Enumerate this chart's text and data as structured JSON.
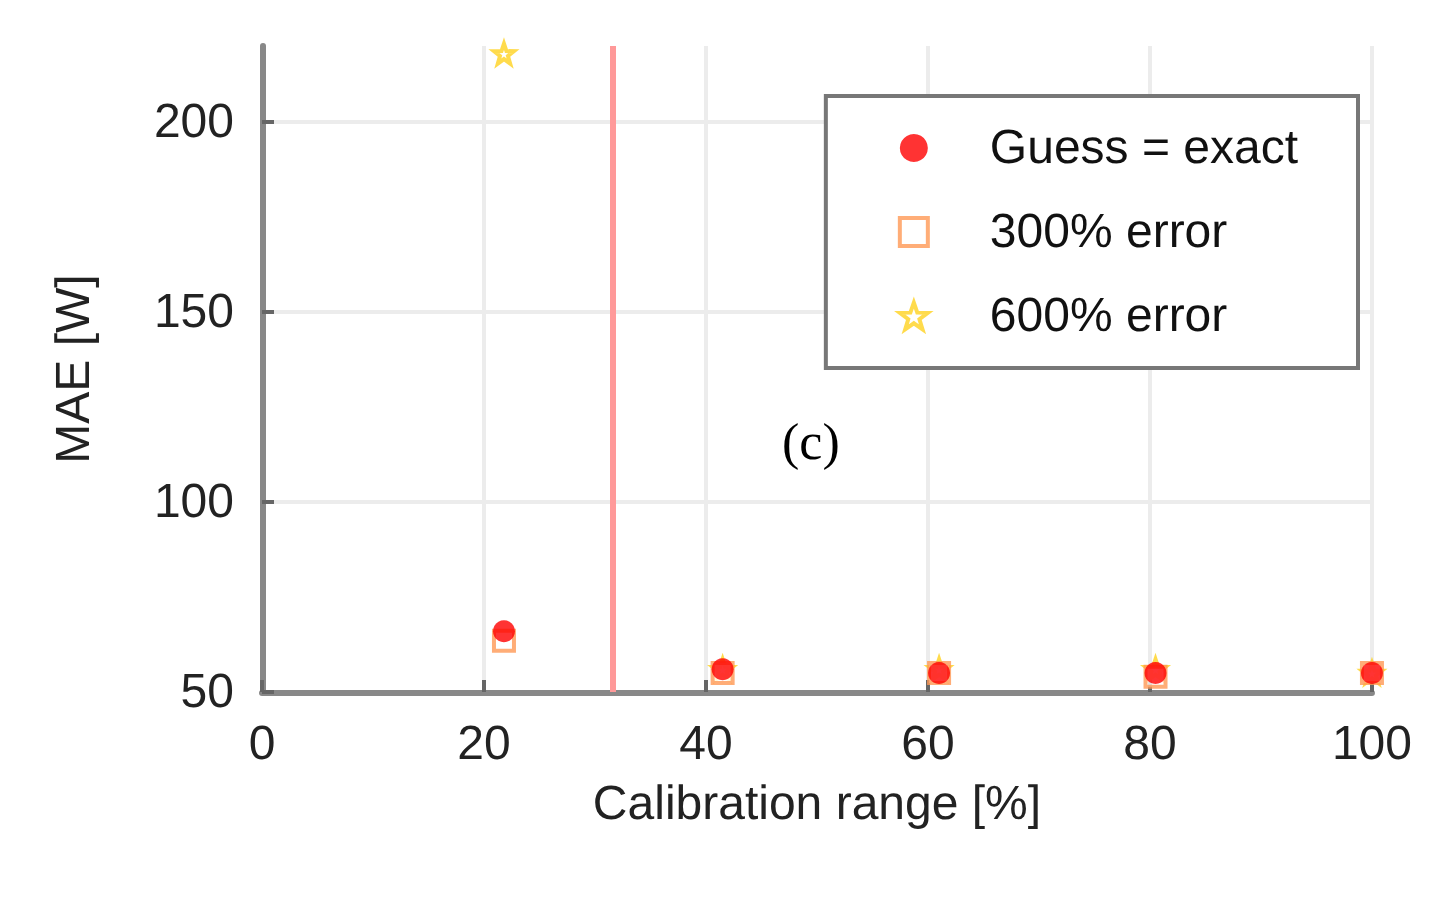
{
  "chart_data": {
    "type": "scatter",
    "xlabel": "Calibration range [%]",
    "ylabel": "MAE [W]",
    "xlim": [
      0,
      100
    ],
    "xticks": [
      0,
      20,
      40,
      60,
      80,
      100
    ],
    "ylim": [
      50,
      220
    ],
    "yticks": [
      50,
      100,
      150,
      200
    ],
    "grid": true,
    "legend": "top right",
    "series": [
      {
        "name": "Guess = exact",
        "color": "#ff0000",
        "marker": "circle",
        "x": [
          21.8,
          41.5,
          61,
          80.5,
          100
        ],
        "values": [
          66,
          56,
          55,
          55,
          55
        ]
      },
      {
        "name": "300% error",
        "color": "#ff9955",
        "marker": "square",
        "x": [
          21.8,
          41.5,
          61,
          80.5,
          100
        ],
        "values": [
          63.5,
          55,
          55,
          54,
          55
        ]
      },
      {
        "name": "600% error",
        "color": "#ffd21f",
        "marker": "star",
        "x": [
          21.8,
          41.5,
          61,
          80.5,
          100
        ],
        "values": [
          218,
          56,
          56,
          56,
          55
        ]
      }
    ],
    "ref_lines": [
      {
        "axis": "x",
        "value": 31.5,
        "color": "#ff9999"
      }
    ],
    "annotations": [
      "(c)"
    ]
  }
}
